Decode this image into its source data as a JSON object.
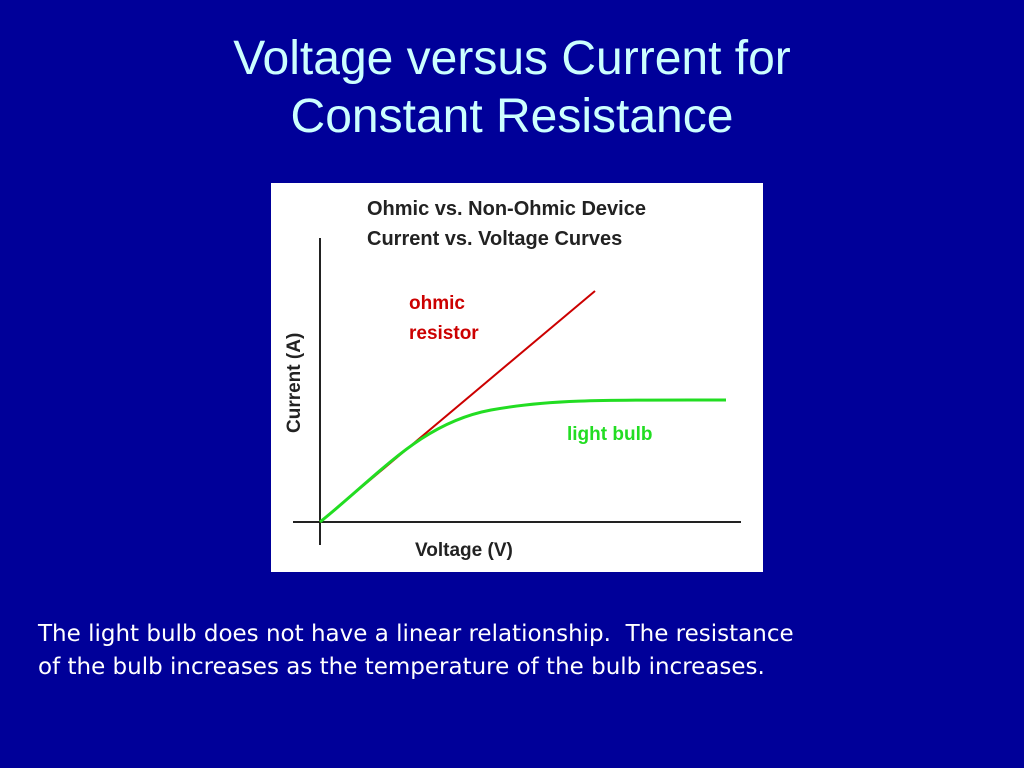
{
  "slide": {
    "title_lines": [
      "Voltage versus Current for",
      "Constant Resistance"
    ],
    "caption_lines": [
      "The light bulb does not have a linear relationship.  The resistance",
      "of the bulb increases as the temperature of the bulb increases."
    ]
  },
  "figure": {
    "title_lines": [
      "Ohmic vs. Non-Ohmic Device",
      "Current vs. Voltage Curves"
    ],
    "x_axis_label": "Voltage (V)",
    "y_axis_label": "Current (A)",
    "ohmic_label_lines": [
      "ohmic",
      "resistor"
    ],
    "bulb_label": "light bulb",
    "colors": {
      "ohmic": "#cc0000",
      "bulb": "#22dd22",
      "axes": "#222222",
      "background": "#000099",
      "title": "#ccffff"
    }
  }
}
